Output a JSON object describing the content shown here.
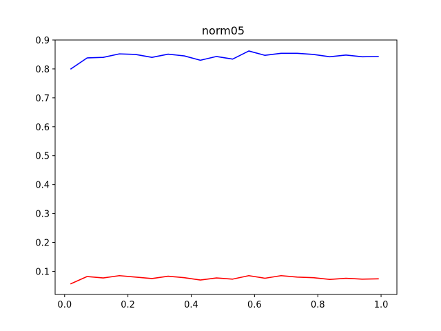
{
  "chart_data": {
    "type": "line",
    "title": "norm05",
    "xlabel": "",
    "ylabel": "",
    "xlim": [
      -0.03,
      1.05
    ],
    "ylim": [
      0.02,
      0.9
    ],
    "xticks": [
      0.0,
      0.2,
      0.4,
      0.6,
      0.8,
      1.0
    ],
    "xtick_labels": [
      "0.0",
      "0.2",
      "0.4",
      "0.6",
      "0.8",
      "1.0"
    ],
    "yticks": [
      0.1,
      0.2,
      0.3,
      0.4,
      0.5,
      0.6,
      0.7,
      0.8,
      0.9
    ],
    "ytick_labels": [
      "0.1",
      "0.2",
      "0.3",
      "0.4",
      "0.5",
      "0.6",
      "0.7",
      "0.8",
      "0.9"
    ],
    "grid": false,
    "x": [
      0.02,
      0.071,
      0.122,
      0.173,
      0.224,
      0.276,
      0.327,
      0.378,
      0.429,
      0.48,
      0.531,
      0.582,
      0.633,
      0.684,
      0.735,
      0.786,
      0.838,
      0.889,
      0.94,
      0.991
    ],
    "series": [
      {
        "color": "#0000ff",
        "values": [
          0.8,
          0.838,
          0.84,
          0.852,
          0.85,
          0.84,
          0.851,
          0.845,
          0.83,
          0.843,
          0.834,
          0.862,
          0.847,
          0.854,
          0.854,
          0.85,
          0.842,
          0.848,
          0.842,
          0.843
        ]
      },
      {
        "color": "#ff0000",
        "values": [
          0.057,
          0.082,
          0.077,
          0.085,
          0.08,
          0.075,
          0.083,
          0.078,
          0.07,
          0.077,
          0.073,
          0.085,
          0.076,
          0.085,
          0.08,
          0.078,
          0.072,
          0.076,
          0.073,
          0.074
        ]
      }
    ]
  }
}
